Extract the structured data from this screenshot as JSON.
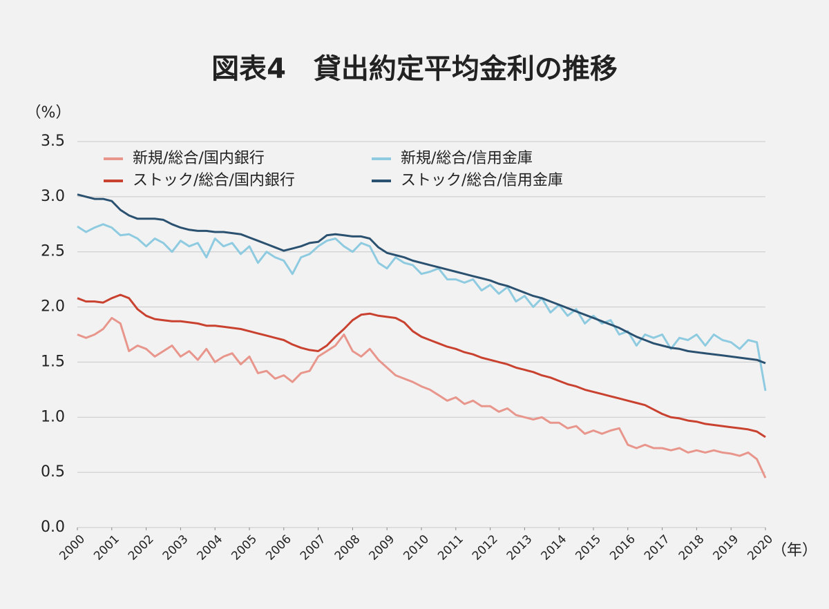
{
  "chart_data": {
    "type": "line",
    "title": "図表4　貸出約定平均金利の推移",
    "y_label": "（%）",
    "x_label": "（年）",
    "x": [
      2000,
      2000.25,
      2000.5,
      2000.75,
      2001,
      2001.25,
      2001.5,
      2001.75,
      2002,
      2002.25,
      2002.5,
      2002.75,
      2003,
      2003.25,
      2003.5,
      2003.75,
      2004,
      2004.25,
      2004.5,
      2004.75,
      2005,
      2005.25,
      2005.5,
      2005.75,
      2006,
      2006.25,
      2006.5,
      2006.75,
      2007,
      2007.25,
      2007.5,
      2007.75,
      2008,
      2008.25,
      2008.5,
      2008.75,
      2009,
      2009.25,
      2009.5,
      2009.75,
      2010,
      2010.25,
      2010.5,
      2010.75,
      2011,
      2011.25,
      2011.5,
      2011.75,
      2012,
      2012.25,
      2012.5,
      2012.75,
      2013,
      2013.25,
      2013.5,
      2013.75,
      2014,
      2014.25,
      2014.5,
      2014.75,
      2015,
      2015.25,
      2015.5,
      2015.75,
      2016,
      2016.25,
      2016.5,
      2016.75,
      2017,
      2017.25,
      2017.5,
      2017.75,
      2018,
      2018.25,
      2018.5,
      2018.75,
      2019,
      2019.25,
      2019.5,
      2019.75,
      2020
    ],
    "series": [
      {
        "name": "新規/総合/国内銀行",
        "color": "#e8968c",
        "values": [
          1.75,
          1.72,
          1.75,
          1.8,
          1.9,
          1.85,
          1.6,
          1.65,
          1.62,
          1.55,
          1.6,
          1.65,
          1.55,
          1.6,
          1.52,
          1.62,
          1.5,
          1.55,
          1.58,
          1.48,
          1.55,
          1.4,
          1.42,
          1.35,
          1.38,
          1.32,
          1.4,
          1.42,
          1.55,
          1.6,
          1.65,
          1.75,
          1.6,
          1.55,
          1.62,
          1.52,
          1.45,
          1.38,
          1.35,
          1.32,
          1.28,
          1.25,
          1.2,
          1.15,
          1.18,
          1.12,
          1.15,
          1.1,
          1.1,
          1.05,
          1.08,
          1.02,
          1.0,
          0.98,
          1.0,
          0.95,
          0.95,
          0.9,
          0.92,
          0.85,
          0.88,
          0.85,
          0.88,
          0.9,
          0.75,
          0.72,
          0.75,
          0.72,
          0.72,
          0.7,
          0.72,
          0.68,
          0.7,
          0.68,
          0.7,
          0.68,
          0.67,
          0.65,
          0.68,
          0.62,
          0.45
        ]
      },
      {
        "name": "新規/総合/信用金庫",
        "color": "#8ecbe0",
        "values": [
          2.73,
          2.68,
          2.72,
          2.75,
          2.72,
          2.65,
          2.66,
          2.62,
          2.55,
          2.62,
          2.58,
          2.5,
          2.6,
          2.55,
          2.58,
          2.45,
          2.62,
          2.55,
          2.58,
          2.48,
          2.55,
          2.4,
          2.5,
          2.45,
          2.42,
          2.3,
          2.45,
          2.48,
          2.55,
          2.6,
          2.62,
          2.55,
          2.5,
          2.58,
          2.55,
          2.4,
          2.35,
          2.45,
          2.4,
          2.38,
          2.3,
          2.32,
          2.35,
          2.25,
          2.25,
          2.22,
          2.25,
          2.15,
          2.2,
          2.12,
          2.18,
          2.05,
          2.1,
          2.0,
          2.08,
          1.95,
          2.02,
          1.92,
          1.98,
          1.85,
          1.92,
          1.85,
          1.88,
          1.75,
          1.78,
          1.65,
          1.75,
          1.72,
          1.75,
          1.62,
          1.72,
          1.7,
          1.75,
          1.65,
          1.75,
          1.7,
          1.68,
          1.62,
          1.7,
          1.68,
          1.24
        ]
      },
      {
        "name": "ストック/総合/国内銀行",
        "color": "#c9412f",
        "values": [
          2.08,
          2.05,
          2.05,
          2.04,
          2.08,
          2.11,
          2.08,
          1.98,
          1.92,
          1.89,
          1.88,
          1.87,
          1.87,
          1.86,
          1.85,
          1.83,
          1.83,
          1.82,
          1.81,
          1.8,
          1.78,
          1.76,
          1.74,
          1.72,
          1.7,
          1.66,
          1.63,
          1.61,
          1.6,
          1.65,
          1.73,
          1.8,
          1.88,
          1.93,
          1.94,
          1.92,
          1.91,
          1.9,
          1.86,
          1.78,
          1.73,
          1.7,
          1.67,
          1.64,
          1.62,
          1.59,
          1.57,
          1.54,
          1.52,
          1.5,
          1.48,
          1.45,
          1.43,
          1.41,
          1.38,
          1.36,
          1.33,
          1.3,
          1.28,
          1.25,
          1.23,
          1.21,
          1.19,
          1.17,
          1.15,
          1.13,
          1.11,
          1.07,
          1.03,
          1.0,
          0.99,
          0.97,
          0.96,
          0.94,
          0.93,
          0.92,
          0.91,
          0.9,
          0.89,
          0.87,
          0.82
        ]
      },
      {
        "name": "ストック/総合/信用金庫",
        "color": "#2b5170",
        "values": [
          3.02,
          3.0,
          2.98,
          2.98,
          2.96,
          2.88,
          2.83,
          2.8,
          2.8,
          2.8,
          2.79,
          2.75,
          2.72,
          2.7,
          2.69,
          2.69,
          2.68,
          2.68,
          2.67,
          2.66,
          2.63,
          2.6,
          2.57,
          2.54,
          2.51,
          2.53,
          2.55,
          2.58,
          2.59,
          2.65,
          2.66,
          2.65,
          2.64,
          2.64,
          2.62,
          2.54,
          2.49,
          2.47,
          2.45,
          2.42,
          2.4,
          2.38,
          2.36,
          2.34,
          2.32,
          2.3,
          2.28,
          2.26,
          2.24,
          2.21,
          2.19,
          2.16,
          2.13,
          2.1,
          2.08,
          2.05,
          2.02,
          1.99,
          1.96,
          1.93,
          1.9,
          1.87,
          1.84,
          1.81,
          1.77,
          1.73,
          1.7,
          1.67,
          1.65,
          1.63,
          1.62,
          1.6,
          1.59,
          1.58,
          1.57,
          1.56,
          1.55,
          1.54,
          1.53,
          1.52,
          1.49
        ]
      }
    ],
    "xlim": [
      2000,
      2020
    ],
    "xticks": [
      2000,
      2001,
      2002,
      2003,
      2004,
      2005,
      2006,
      2007,
      2008,
      2009,
      2010,
      2011,
      2012,
      2013,
      2014,
      2015,
      2016,
      2017,
      2018,
      2019,
      2020
    ],
    "ylim": [
      0,
      3.5
    ],
    "yticks": [
      {
        "value": 0,
        "label": "0.0"
      },
      0.5,
      {
        "value": 1,
        "label": "1.0"
      },
      1.5,
      {
        "value": 2,
        "label": "2.0"
      },
      2.5,
      {
        "value": 3,
        "label": "3.0"
      },
      3.5
    ],
    "grid": true
  }
}
